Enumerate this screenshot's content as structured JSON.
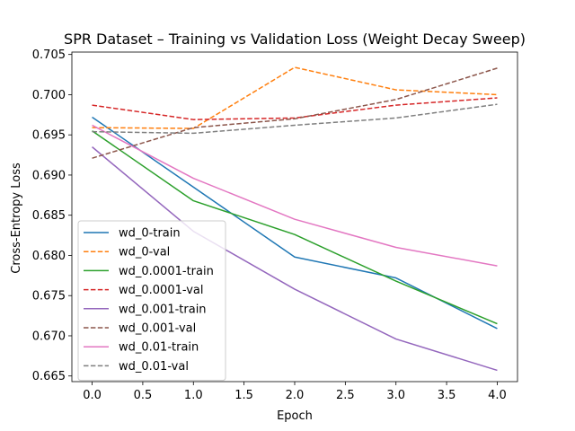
{
  "chart_data": {
    "type": "line",
    "title": "SPR Dataset – Training vs Validation Loss (Weight Decay Sweep)",
    "xlabel": "Epoch",
    "ylabel": "Cross-Entropy Loss",
    "x": [
      0,
      1,
      2,
      3,
      4
    ],
    "xlim": [
      -0.2,
      4.2
    ],
    "ylim": [
      0.6643,
      0.7053
    ],
    "xticks": [
      "0.0",
      "0.5",
      "1.0",
      "1.5",
      "2.0",
      "2.5",
      "3.0",
      "3.5",
      "4.0"
    ],
    "yticks": [
      "0.665",
      "0.670",
      "0.675",
      "0.680",
      "0.685",
      "0.690",
      "0.695",
      "0.700",
      "0.705"
    ],
    "grid": false,
    "legend_position": "lower-left",
    "series": [
      {
        "name": "wd_0-train",
        "color": "#1f77b4",
        "dashed": false,
        "values": [
          0.6972,
          0.6885,
          0.6798,
          0.6772,
          0.6709
        ]
      },
      {
        "name": "wd_0-val",
        "color": "#ff7f0e",
        "dashed": true,
        "values": [
          0.6959,
          0.6958,
          0.7034,
          0.7006,
          0.7
        ]
      },
      {
        "name": "wd_0.0001-train",
        "color": "#2ca02c",
        "dashed": false,
        "values": [
          0.6955,
          0.6868,
          0.6826,
          0.6768,
          0.6715
        ]
      },
      {
        "name": "wd_0.0001-val",
        "color": "#d62728",
        "dashed": true,
        "values": [
          0.6987,
          0.6969,
          0.6971,
          0.6987,
          0.6996
        ]
      },
      {
        "name": "wd_0.001-train",
        "color": "#9467bd",
        "dashed": false,
        "values": [
          0.6935,
          0.683,
          0.6758,
          0.6696,
          0.6657
        ]
      },
      {
        "name": "wd_0.001-val",
        "color": "#8c564b",
        "dashed": true,
        "values": [
          0.6921,
          0.6959,
          0.697,
          0.6994,
          0.7033
        ]
      },
      {
        "name": "wd_0.01-train",
        "color": "#e377c2",
        "dashed": false,
        "values": [
          0.6962,
          0.6896,
          0.6845,
          0.681,
          0.6787
        ]
      },
      {
        "name": "wd_0.01-val",
        "color": "#7f7f7f",
        "dashed": true,
        "values": [
          0.6954,
          0.6952,
          0.6962,
          0.6971,
          0.6988
        ]
      }
    ]
  }
}
